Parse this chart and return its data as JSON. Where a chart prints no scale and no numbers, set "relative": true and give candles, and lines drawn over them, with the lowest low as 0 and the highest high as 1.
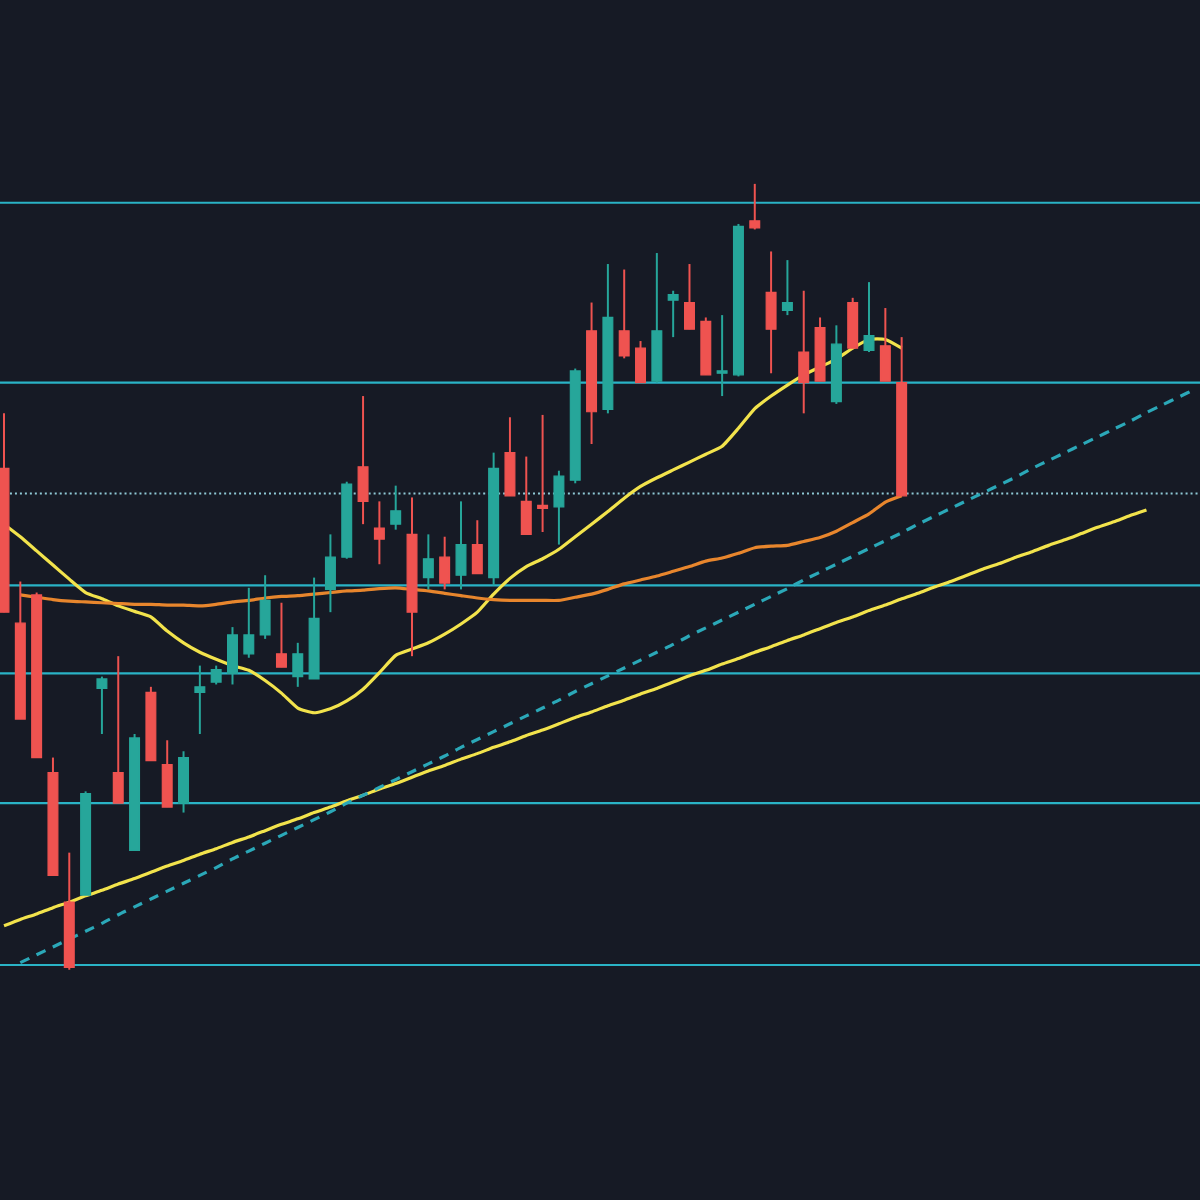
{
  "chart_data": {
    "type": "candlestick",
    "relative": true,
    "categories": [
      null,
      null,
      null,
      null,
      null,
      null,
      null,
      null,
      null,
      null,
      null,
      null,
      null,
      null,
      null,
      null,
      null,
      null,
      null,
      null,
      null,
      null,
      null,
      null,
      null,
      null,
      null,
      null,
      null,
      null,
      null,
      null,
      null,
      null,
      null,
      null,
      null,
      null,
      null,
      null,
      null,
      null,
      null,
      null,
      null,
      null,
      null,
      null,
      null,
      null,
      null,
      null,
      null,
      null,
      null,
      null,
      null,
      null,
      null,
      null,
      null,
      null,
      null,
      null,
      null,
      null,
      null,
      null,
      null,
      null,
      null,
      null,
      null,
      null
    ],
    "ohlc": [
      [
        0.638,
        0.708,
        0.455,
        0.455
      ],
      [
        0.441,
        0.494,
        0.319,
        0.319
      ],
      [
        0.477,
        0.48,
        0.27,
        0.27
      ],
      [
        0.251,
        0.27,
        0.12,
        0.12
      ],
      [
        0.086,
        0.149,
        0.0,
        0.003
      ],
      [
        0.095,
        0.227,
        0.095,
        0.224
      ],
      [
        0.358,
        0.373,
        0.3,
        0.37
      ],
      [
        0.251,
        0.399,
        0.212,
        0.212
      ],
      [
        0.152,
        0.3,
        0.152,
        0.295
      ],
      [
        0.353,
        0.36,
        0.266,
        0.266
      ],
      [
        0.261,
        0.292,
        0.207,
        0.207
      ],
      [
        0.212,
        0.278,
        0.2,
        0.27
      ],
      [
        0.353,
        0.387,
        0.3,
        0.36
      ],
      [
        0.366,
        0.387,
        0.363,
        0.382
      ],
      [
        0.377,
        0.436,
        0.363,
        0.426
      ],
      [
        0.402,
        0.486,
        0.397,
        0.426
      ],
      [
        0.426,
        0.502,
        0.421,
        0.47
      ],
      [
        0.402,
        0.467,
        0.385,
        0.385
      ],
      [
        0.373,
        0.416,
        0.36,
        0.402
      ],
      [
        0.37,
        0.499,
        0.37,
        0.447
      ],
      [
        0.484,
        0.554,
        0.455,
        0.525
      ],
      [
        0.525,
        0.621,
        0.523,
        0.618
      ],
      [
        0.64,
        0.73,
        0.567,
        0.596
      ],
      [
        0.562,
        0.596,
        0.516,
        0.548
      ],
      [
        0.567,
        0.616,
        0.56,
        0.584
      ],
      [
        0.554,
        0.601,
        0.399,
        0.455
      ],
      [
        0.499,
        0.554,
        0.484,
        0.523
      ],
      [
        0.525,
        0.551,
        0.484,
        0.492
      ],
      [
        0.502,
        0.596,
        0.484,
        0.541
      ],
      [
        0.541,
        0.572,
        0.504,
        0.504
      ],
      [
        0.499,
        0.658,
        0.489,
        0.638
      ],
      [
        0.658,
        0.703,
        0.603,
        0.603
      ],
      [
        0.596,
        0.653,
        0.554,
        0.554
      ],
      [
        0.591,
        0.706,
        0.557,
        0.587
      ],
      [
        0.589,
        0.635,
        0.541,
        0.628
      ],
      [
        0.623,
        0.765,
        0.619,
        0.762
      ],
      [
        0.813,
        0.849,
        0.669,
        0.71
      ],
      [
        0.713,
        0.898,
        0.708,
        0.83
      ],
      [
        0.813,
        0.891,
        0.778,
        0.781
      ],
      [
        0.791,
        0.8,
        0.747,
        0.747
      ],
      [
        0.749,
        0.912,
        0.747,
        0.813
      ],
      [
        0.852,
        0.864,
        0.805,
        0.859
      ],
      [
        0.849,
        0.898,
        0.815,
        0.815
      ],
      [
        0.825,
        0.83,
        0.757,
        0.757
      ],
      [
        0.762,
        0.833,
        0.73,
        0.759
      ],
      [
        0.757,
        0.949,
        0.755,
        0.946
      ],
      [
        0.953,
        1.0,
        0.942,
        0.944
      ],
      [
        0.862,
        0.914,
        0.759,
        0.815
      ],
      [
        0.839,
        0.903,
        0.833,
        0.849
      ],
      [
        0.786,
        0.864,
        0.708,
        0.747
      ],
      [
        0.817,
        0.83,
        0.749,
        0.749
      ],
      [
        0.723,
        0.82,
        0.72,
        0.796
      ],
      [
        0.849,
        0.855,
        0.791,
        0.791
      ],
      [
        0.788,
        0.875,
        0.786,
        0.807
      ],
      [
        0.794,
        0.842,
        0.749,
        0.749
      ],
      [
        0.747,
        0.805,
        0.603,
        0.603
      ],
      null,
      null,
      null,
      null,
      null,
      null,
      null,
      null,
      null,
      null,
      null,
      null,
      null,
      null,
      null,
      null,
      null,
      null
    ],
    "colors": [
      "#ef5350",
      "#ef5350",
      "#ef5350",
      "#ef5350",
      "#ef5350",
      "#26a69a",
      "#26a69a",
      "#ef5350",
      "#26a69a",
      "#ef5350",
      "#ef5350",
      "#26a69a",
      "#26a69a",
      "#26a69a",
      "#26a69a",
      "#26a69a",
      "#26a69a",
      "#ef5350",
      "#26a69a",
      "#26a69a",
      "#26a69a",
      "#26a69a",
      "#ef5350",
      "#ef5350",
      "#26a69a",
      "#ef5350",
      "#26a69a",
      "#ef5350",
      "#26a69a",
      "#ef5350",
      "#26a69a",
      "#ef5350",
      "#ef5350",
      "#ef5350",
      "#26a69a",
      "#26a69a",
      "#ef5350",
      "#26a69a",
      "#ef5350",
      "#ef5350",
      "#26a69a",
      "#26a69a",
      "#ef5350",
      "#ef5350",
      "#26a69a",
      "#26a69a",
      "#ef5350",
      "#ef5350",
      "#26a69a",
      "#ef5350",
      "#ef5350",
      "#26a69a",
      "#ef5350",
      "#26a69a",
      "#ef5350",
      "#ef5350",
      null,
      null,
      null,
      null,
      null,
      null,
      null,
      null,
      null,
      null,
      null,
      null,
      null,
      null,
      null,
      null,
      null,
      null
    ],
    "series": [
      {
        "type": "line",
        "color": "#f2e34c",
        "line_style": "solid",
        "values": [
          0.567,
          0.551,
          0.533,
          0.515,
          0.497,
          0.48,
          0.472,
          0.463,
          0.456,
          0.449,
          0.431,
          0.416,
          0.404,
          0.395,
          0.387,
          0.381,
          0.368,
          0.352,
          0.333,
          0.327,
          0.332,
          0.342,
          0.357,
          0.378,
          0.4,
          0.408,
          0.416,
          0.427,
          0.44,
          0.455,
          0.478,
          0.498,
          0.513,
          0.523,
          0.535,
          0.551,
          0.567,
          0.583,
          0.6,
          0.615,
          0.626,
          0.636,
          0.646,
          0.656,
          0.666,
          0.689,
          0.714,
          0.73,
          0.744,
          0.757,
          0.767,
          0.777,
          0.791,
          0.802,
          0.802,
          0.791,
          null,
          null,
          null,
          null,
          null,
          null,
          null,
          null,
          null,
          null,
          null,
          null,
          null,
          null,
          null,
          null,
          null,
          null
        ]
      },
      {
        "type": "line",
        "color": "#e8862d",
        "line_style": "solid",
        "values": [
          null,
          0.477,
          0.474,
          0.471,
          0.469,
          0.468,
          0.467,
          0.466,
          0.465,
          0.465,
          0.464,
          0.464,
          0.463,
          0.465,
          0.468,
          0.47,
          0.473,
          0.475,
          0.476,
          0.478,
          0.48,
          0.482,
          0.483,
          0.485,
          0.486,
          0.484,
          0.482,
          0.479,
          0.476,
          0.473,
          0.471,
          0.47,
          0.47,
          0.47,
          0.47,
          0.474,
          0.478,
          0.484,
          0.491,
          0.496,
          0.501,
          0.507,
          0.513,
          0.52,
          0.524,
          0.53,
          0.537,
          0.539,
          0.54,
          0.545,
          0.55,
          0.558,
          0.569,
          0.58,
          0.595,
          0.603,
          null,
          null,
          null,
          null,
          null,
          null,
          null,
          null,
          null,
          null,
          null,
          null,
          null,
          null,
          null,
          null,
          null,
          null
        ]
      },
      {
        "type": "line",
        "color": "#f2e34c",
        "line_style": "solid",
        "values": [
          0.056,
          0.064,
          0.071,
          0.079,
          0.086,
          0.094,
          0.101,
          0.109,
          0.116,
          0.124,
          0.132,
          0.139,
          0.147,
          0.154,
          0.162,
          0.169,
          0.177,
          0.185,
          0.192,
          0.2,
          0.207,
          0.215,
          0.222,
          0.23,
          0.237,
          0.245,
          0.253,
          0.26,
          0.268,
          0.275,
          0.283,
          0.29,
          0.298,
          0.305,
          0.313,
          0.321,
          0.328,
          0.336,
          0.343,
          0.351,
          0.358,
          0.366,
          0.374,
          0.381,
          0.389,
          0.396,
          0.404,
          0.411,
          0.419,
          0.426,
          0.434,
          0.442,
          0.449,
          0.457,
          0.464,
          0.472,
          0.479,
          0.487,
          0.494,
          0.502,
          0.51,
          0.517,
          0.525,
          0.532,
          0.54,
          0.547,
          0.555,
          0.563,
          0.57,
          0.578,
          0.585,
          null,
          null,
          null
        ]
      },
      {
        "type": "line",
        "color": "#2ba8b8",
        "line_style": "dashed",
        "values": [
          null,
          0.009,
          0.019,
          0.029,
          0.039,
          0.049,
          0.059,
          0.07,
          0.08,
          0.09,
          0.1,
          0.11,
          0.12,
          0.13,
          0.141,
          0.151,
          0.161,
          0.171,
          0.181,
          0.191,
          0.201,
          0.212,
          0.222,
          0.232,
          0.242,
          0.252,
          0.262,
          0.272,
          0.283,
          0.293,
          0.303,
          0.313,
          0.323,
          0.333,
          0.343,
          0.354,
          0.364,
          0.374,
          0.384,
          0.394,
          0.404,
          0.414,
          0.425,
          0.435,
          0.445,
          0.455,
          0.465,
          0.475,
          0.485,
          0.496,
          0.506,
          0.516,
          0.526,
          0.536,
          0.546,
          0.556,
          0.567,
          0.577,
          0.587,
          0.597,
          0.607,
          0.617,
          0.627,
          0.638,
          0.648,
          0.658,
          0.668,
          0.678,
          0.688,
          0.698,
          0.709,
          0.719,
          0.729,
          0.739
        ]
      }
    ],
    "ref_lines": [
      {
        "axis": "y",
        "value": 0.976,
        "color": "#2ab3c6",
        "line_style": "solid"
      },
      {
        "axis": "y",
        "value": 0.747,
        "color": "#2ab3c6",
        "line_style": "solid"
      },
      {
        "axis": "y",
        "value": 0.606,
        "color": "#8fc9d6",
        "line_style": "dotted"
      },
      {
        "axis": "y",
        "value": 0.489,
        "color": "#2ab3c6",
        "line_style": "solid"
      },
      {
        "axis": "y",
        "value": 0.377,
        "color": "#2ab3c6",
        "line_style": "solid"
      },
      {
        "axis": "y",
        "value": 0.212,
        "color": "#2ab3c6",
        "line_style": "solid"
      },
      {
        "axis": "y",
        "value": 0.006,
        "color": "#2ab3c6",
        "line_style": "solid"
      }
    ]
  }
}
